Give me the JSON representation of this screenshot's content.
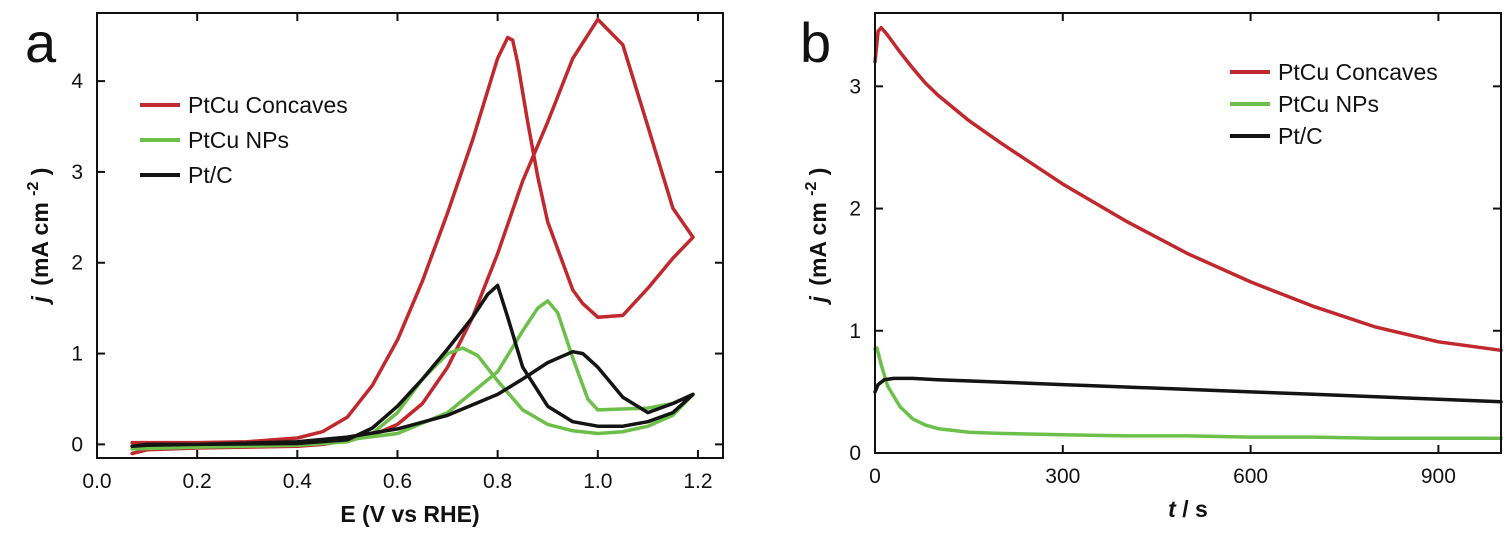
{
  "chart_data": [
    {
      "panel": "a",
      "type": "line",
      "xlabel": "E (V vs RHE)",
      "ylabel": "j (mA cm-2)",
      "ylabel_parts": {
        "symbol": "j",
        "unit": "(mA cm",
        "sup": "-2",
        "close": ")"
      },
      "xlim": [
        0.0,
        1.25
      ],
      "ylim": [
        -0.15,
        4.75
      ],
      "xticks": [
        "0.0",
        "0.2",
        "0.4",
        "0.6",
        "0.8",
        "1.0",
        "1.2"
      ],
      "yticks": [
        "0",
        "1",
        "2",
        "3",
        "4"
      ],
      "legend": {
        "placement": "upper-left"
      },
      "series": [
        {
          "name": "PtCu Concaves",
          "color": "#c0282d",
          "x": [
            0.07,
            0.1,
            0.2,
            0.3,
            0.4,
            0.45,
            0.5,
            0.55,
            0.6,
            0.65,
            0.7,
            0.75,
            0.8,
            0.85,
            0.9,
            0.95,
            1.0,
            1.05,
            1.1,
            1.15,
            1.19,
            1.19,
            1.15,
            1.1,
            1.05,
            1.0,
            0.97,
            0.95,
            0.9,
            0.88,
            0.86,
            0.84,
            0.83,
            0.82,
            0.8,
            0.75,
            0.7,
            0.65,
            0.6,
            0.55,
            0.5,
            0.45,
            0.4,
            0.3,
            0.2,
            0.1,
            0.07
          ],
          "y": [
            -0.1,
            -0.06,
            -0.04,
            -0.03,
            -0.02,
            0.0,
            0.04,
            0.1,
            0.22,
            0.45,
            0.85,
            1.4,
            2.1,
            2.9,
            3.55,
            4.25,
            4.68,
            4.4,
            3.5,
            2.6,
            2.28,
            2.28,
            2.05,
            1.72,
            1.42,
            1.4,
            1.55,
            1.7,
            2.45,
            2.95,
            3.55,
            4.2,
            4.45,
            4.48,
            4.25,
            3.35,
            2.55,
            1.8,
            1.15,
            0.65,
            0.3,
            0.14,
            0.07,
            0.03,
            0.02,
            0.02,
            0.02
          ]
        },
        {
          "name": "PtCu NPs",
          "color": "#6cc04a",
          "x": [
            0.07,
            0.2,
            0.4,
            0.5,
            0.55,
            0.6,
            0.65,
            0.7,
            0.73,
            0.76,
            0.8,
            0.85,
            0.9,
            0.95,
            1.0,
            1.05,
            1.1,
            1.15,
            1.19,
            1.19,
            1.15,
            1.1,
            1.0,
            0.98,
            0.95,
            0.92,
            0.9,
            0.88,
            0.85,
            0.8,
            0.7,
            0.6,
            0.5,
            0.4,
            0.2,
            0.07
          ],
          "y": [
            -0.05,
            -0.03,
            -0.01,
            0.03,
            0.12,
            0.35,
            0.72,
            1.0,
            1.06,
            0.98,
            0.7,
            0.38,
            0.22,
            0.15,
            0.12,
            0.14,
            0.2,
            0.32,
            0.55,
            0.55,
            0.45,
            0.4,
            0.38,
            0.5,
            0.95,
            1.45,
            1.58,
            1.5,
            1.25,
            0.8,
            0.35,
            0.12,
            0.05,
            0.02,
            0.0,
            -0.02
          ]
        },
        {
          "name": "Pt/C",
          "color": "#141414",
          "x": [
            0.07,
            0.1,
            0.2,
            0.4,
            0.5,
            0.55,
            0.6,
            0.65,
            0.7,
            0.75,
            0.78,
            0.8,
            0.82,
            0.85,
            0.9,
            0.95,
            1.0,
            1.05,
            1.1,
            1.15,
            1.19,
            1.19,
            1.15,
            1.1,
            1.05,
            1.0,
            0.97,
            0.95,
            0.9,
            0.85,
            0.8,
            0.7,
            0.6,
            0.5,
            0.4,
            0.2,
            0.1,
            0.07
          ],
          "y": [
            -0.02,
            0.0,
            0.0,
            0.01,
            0.05,
            0.18,
            0.42,
            0.72,
            1.05,
            1.4,
            1.65,
            1.75,
            1.4,
            0.85,
            0.42,
            0.25,
            0.2,
            0.2,
            0.25,
            0.35,
            0.55,
            0.55,
            0.45,
            0.35,
            0.52,
            0.85,
            1.0,
            1.02,
            0.9,
            0.72,
            0.55,
            0.32,
            0.17,
            0.08,
            0.03,
            0.0,
            -0.01,
            -0.02
          ]
        }
      ]
    },
    {
      "panel": "b",
      "type": "line",
      "xlabel": "t / s",
      "xlabel_parts": {
        "symbol": "t",
        "rest": " / s"
      },
      "ylabel": "j (mA cm-2)",
      "ylabel_parts": {
        "symbol": "j",
        "unit": "(mA cm",
        "sup": "-2",
        "close": ")"
      },
      "xlim": [
        0,
        1000
      ],
      "ylim": [
        0,
        3.6
      ],
      "xticks": [
        "0",
        "300",
        "600",
        "900"
      ],
      "yticks": [
        "0",
        "1",
        "2",
        "3"
      ],
      "legend": {
        "placement": "upper-right"
      },
      "series": [
        {
          "name": "PtCu Concaves",
          "color": "#c0282d",
          "x": [
            0,
            5,
            10,
            20,
            40,
            60,
            80,
            100,
            150,
            200,
            300,
            400,
            500,
            600,
            700,
            800,
            900,
            1000
          ],
          "y": [
            3.2,
            3.45,
            3.48,
            3.42,
            3.28,
            3.15,
            3.03,
            2.93,
            2.72,
            2.54,
            2.2,
            1.9,
            1.63,
            1.4,
            1.2,
            1.03,
            0.91,
            0.84
          ]
        },
        {
          "name": "PtCu NPs",
          "color": "#6cc04a",
          "x": [
            0,
            3,
            10,
            20,
            40,
            60,
            80,
            100,
            150,
            200,
            300,
            400,
            500,
            600,
            700,
            800,
            900,
            1000
          ],
          "y": [
            0.85,
            0.86,
            0.72,
            0.55,
            0.38,
            0.28,
            0.23,
            0.2,
            0.17,
            0.16,
            0.15,
            0.14,
            0.14,
            0.13,
            0.13,
            0.12,
            0.12,
            0.12
          ]
        },
        {
          "name": "Pt/C",
          "color": "#141414",
          "x": [
            0,
            5,
            15,
            30,
            60,
            100,
            200,
            300,
            400,
            500,
            600,
            700,
            800,
            900,
            1000
          ],
          "y": [
            0.5,
            0.56,
            0.6,
            0.61,
            0.61,
            0.6,
            0.58,
            0.56,
            0.54,
            0.52,
            0.5,
            0.48,
            0.46,
            0.44,
            0.42
          ]
        }
      ]
    }
  ]
}
